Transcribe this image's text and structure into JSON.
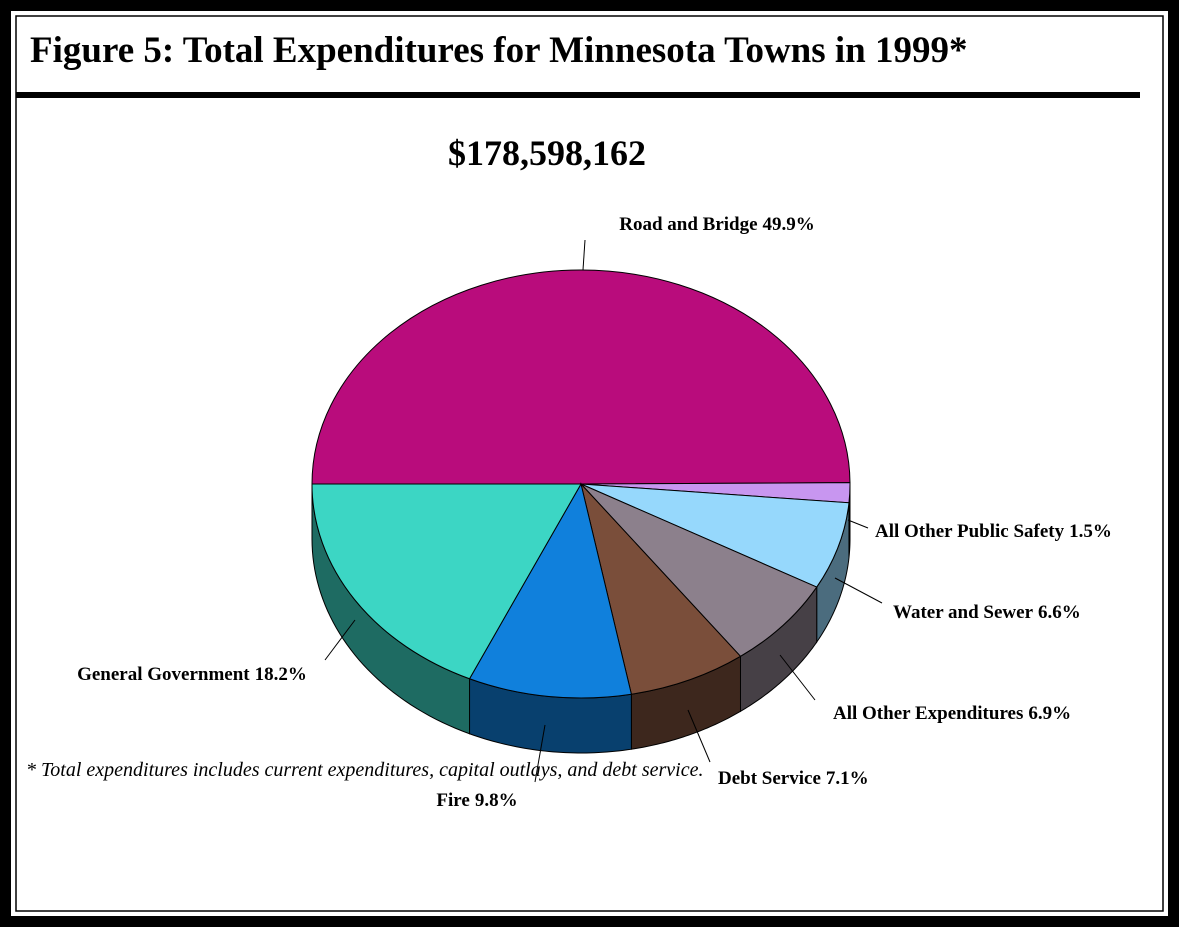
{
  "chart_data": {
    "type": "pie",
    "title": "Figure 5: Total Expenditures for Minnesota Towns in 1999*",
    "subtitle": "$178,598,162",
    "footnote": "* Total expenditures includes current expenditures, capital outlays, and debt service.",
    "categories": [
      "Road and Bridge",
      "All Other Public Safety",
      "Water and Sewer",
      "All Other Expenditures",
      "Debt Service",
      "Fire",
      "General Government"
    ],
    "values": [
      49.9,
      1.5,
      6.6,
      6.9,
      7.1,
      9.8,
      18.2
    ],
    "value_labels": [
      "49.9%",
      "1.5%",
      "6.6%",
      "6.9%",
      "7.1%",
      "9.8%",
      "18.2%"
    ],
    "colors": [
      "#b90c7c",
      "#c896f0",
      "#96d8fc",
      "#8c808c",
      "#7a4e3a",
      "#1080dc",
      "#3cd6c4"
    ]
  }
}
